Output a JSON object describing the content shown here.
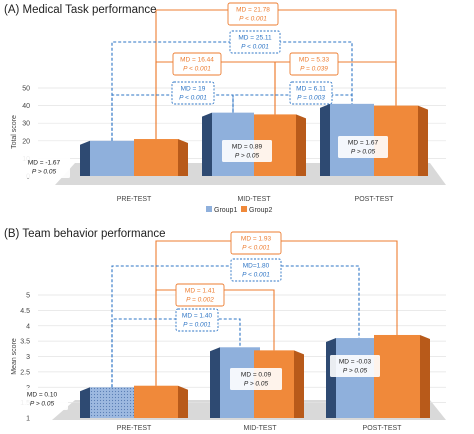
{
  "colors": {
    "group1": "#8fb0dc",
    "group1_dark": "#2e4a72",
    "group2": "#f0893a",
    "group2_dark": "#b85a1a",
    "blue_bracket": "#2e75c5",
    "orange_bracket": "#ed7d31",
    "floor": "#d9d9d9"
  },
  "legend": [
    "Group1",
    "Group2"
  ],
  "chart_data": [
    {
      "type": "bar",
      "title": "(A) Medical Task performance",
      "ylabel": "Total score",
      "yticks": [
        "0",
        "10",
        "20",
        "30",
        "40",
        "50"
      ],
      "ylim": [
        0,
        50
      ],
      "categories": [
        "PRE-TEST",
        "MID-TEST",
        "POST-TEST"
      ],
      "series": [
        {
          "name": "Group1",
          "values": [
            20,
            36,
            41
          ]
        },
        {
          "name": "Group2",
          "values": [
            21,
            35,
            40
          ]
        }
      ],
      "group_annotations": [
        {
          "md": "MD = -1.67",
          "p": "P > 0.05"
        },
        {
          "md": "MD = 0.89",
          "p": "P > 0.05"
        },
        {
          "md": "MD = 1.67",
          "p": "P > 0.05"
        }
      ],
      "brackets": [
        {
          "group": "Group2",
          "from": 0,
          "to": 2,
          "md": "MD = 21.78",
          "p": "P < 0.001"
        },
        {
          "group": "Group1",
          "from": 0,
          "to": 2,
          "md": "MD = 25.11",
          "p": "P < 0.001"
        },
        {
          "group": "Group2",
          "from": 0,
          "to": 1,
          "md": "MD = 16.44",
          "p": "P < 0.001"
        },
        {
          "group": "Group2",
          "from": 1,
          "to": 2,
          "md": "MD = 5.33",
          "p": "P = 0.039"
        },
        {
          "group": "Group1",
          "from": 0,
          "to": 1,
          "md": "MD = 19",
          "p": "P < 0.001"
        },
        {
          "group": "Group1",
          "from": 1,
          "to": 2,
          "md": "MD = 6.11",
          "p": "P = 0.003"
        }
      ]
    },
    {
      "type": "bar",
      "title": "(B) Team behavior performance",
      "ylabel": "Mean score",
      "yticks": [
        "1",
        "1.5",
        "2",
        "2.5",
        "3",
        "3.5",
        "4",
        "4.5",
        "5"
      ],
      "ylim": [
        1,
        5
      ],
      "categories": [
        "PRE-TEST",
        "MID-TEST",
        "POST-TEST"
      ],
      "series": [
        {
          "name": "Group1",
          "values": [
            2.0,
            3.3,
            3.6
          ]
        },
        {
          "name": "Group2",
          "values": [
            2.05,
            3.2,
            3.7
          ]
        }
      ],
      "group_annotations": [
        {
          "md": "MD = 0.10",
          "p": "P > 0.05"
        },
        {
          "md": "MD = 0.09",
          "p": "P > 0.05"
        },
        {
          "md": "MD = -0.03",
          "p": "P > 0.05"
        }
      ],
      "brackets": [
        {
          "group": "Group2",
          "from": 0,
          "to": 2,
          "md": "MD = 1.93",
          "p": "P < 0.001"
        },
        {
          "group": "Group1",
          "from": 0,
          "to": 2,
          "md": "MD=1.80",
          "p": "P < 0.001"
        },
        {
          "group": "Group2",
          "from": 0,
          "to": 1,
          "md": "MD = 1.41",
          "p": "P = 0.002"
        },
        {
          "group": "Group1",
          "from": 0,
          "to": 1,
          "md": "MD = 1.40",
          "p": "P = 0.001"
        }
      ]
    }
  ]
}
